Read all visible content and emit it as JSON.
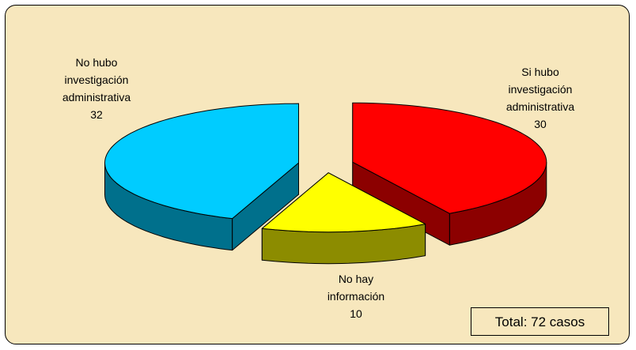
{
  "chart_data": {
    "type": "pie",
    "categories": [
      "Si hubo investigación administrativa",
      "No hay información",
      "No hubo investigación administrativa"
    ],
    "values": [
      30,
      10,
      32
    ],
    "colors": [
      "#ff0000",
      "#ffff00",
      "#00ccff"
    ],
    "annotation": "Total: 72 casos"
  }
}
